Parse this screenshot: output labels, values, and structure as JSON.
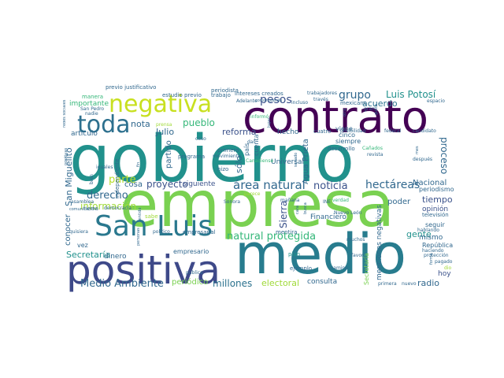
{
  "palette": {
    "purple": "#440154",
    "indigo": "#3b528b",
    "blue": "#31688e",
    "teal": "#21918c",
    "green": "#35b779",
    "lime": "#8fd744",
    "yellow": "#c8e020"
  },
  "words": {
    "gobierno": "gobierno",
    "empresa": "empresa",
    "medio": "medio",
    "contrato": "contrato",
    "positiva": "positiva",
    "san_luis": "San Luis",
    "negativa": "negativa",
    "toda": "toda",
    "medio_ambiente": "Medio Ambiente",
    "pesos": "pesos",
    "grupo": "grupo",
    "luis_potosi": "Luis Potosí",
    "acuerdo": "acuerdo",
    "area_natural": "área natural",
    "natural_protegida": "natural protegida",
    "hectareas": "hectáreas",
    "noticia": "noticia",
    "proyecto": "proyecto",
    "derecho": "derecho",
    "parte": "parte",
    "informacion": "información",
    "pueblo": "pueblo",
    "nota": "nota",
    "julio": "Julio",
    "reforma": "reforma",
    "millones": "millones",
    "electoral": "electoral",
    "periodico": "periódico",
    "secretaria": "Secretaría",
    "gente": "gente",
    "radio": "radio",
    "importante": "importante",
    "articulo": "artículo",
    "proceso": "proceso",
    "tiempo": "tiempo",
    "poder": "poder",
    "nacional": "Nacional",
    "periodismo": "periodismo",
    "opinion": "opinión",
    "television": "televisión",
    "seguir": "seguir",
    "san_miguelito": "San Miguelito",
    "conocer": "conocer",
    "agua_prieta": "Agua Prieta",
    "sierra": "Sierra",
    "solo": "sólo",
    "menciones_negativas": "menciones negativas",
    "mismo": "mismo",
    "republica": "República",
    "hoy": "hoy",
    "cosa": "cosa",
    "siguiente": "siguiente",
    "partido": "partido",
    "dinero": "dinero",
    "vez": "vez",
    "empresarial": "empresarial",
    "empresario": "empresario",
    "financiero": "Financiero",
    "consulta": "consulta",
    "universal": "Universal",
    "pais": "país",
    "cuenta": "cuenta",
    "hecho": "hecho",
    "viene": "viene",
    "cinco": "cinco",
    "siempre": "siempre",
    "desarrollo": "desarrollo",
    "cuatro": "cuatro",
    "posibilidad": "posibilidad",
    "federal": "federal",
    "candidato": "candidato",
    "previo_justificativo": "previo justificativo",
    "periodista": "periodista",
    "intereses_creados": "intereses creados",
    "trabajadores": "trabajadores",
    "mexicano": "mexicano",
    "traves": "través",
    "espacio": "espacio",
    "manera": "manera",
    "redes_sociales": "redes sociales",
    "san_pedro": "San Pedro",
    "nadie": "nadie",
    "adelante": "Adelante",
    "construyendo": "construyendo",
    "incluso": "incluso",
    "estudio_previo": "estudio previo",
    "trabajo": "trabajo",
    "caso": "caso",
    "programa": "programa",
    "primero": "primero",
    "movimiento": "movimiento",
    "hizo": "hizo",
    "iguales": "iguales",
    "independiente": "independiente",
    "despues": "después",
    "canadienses": "Canadiense",
    "senado": "senado",
    "dar": "dar",
    "mentira": "mentira",
    "manana": "mañana",
    "nuevo_leon": "Nuevo León",
    "plan": "plan",
    "ejemplo": "ejemplo",
    "favor": "favor",
    "camino": "camino",
    "sonora": "Sonora",
    "pagado": "pagado",
    "haciendo": "haciendo",
    "proteccion": "protección",
    "primera": "primera",
    "nuevo": "nuevo",
    "muchos": "muchos",
    "politico": "político",
    "publica": "pública",
    "asamblea": "asamblea",
    "comunicacion": "comunicación",
    "quisiera": "quisiera",
    "democracia": "democracia",
    "tierra": "tierra",
    "mes": "mes",
    "informo": "informó",
    "lugar": "lugar",
    "sabe": "sabe",
    "gran": "gran",
    "revista": "revista",
    "canones": "Cañados",
    "hablando": "hablando",
    "fin": "fin",
    "sentido": "sentido",
    "forma": "forma",
    "gusta": "gusta",
    "bien": "bien",
    "ine": "INE",
    "verdad": "verdad",
    "prensa": "prensa",
    "otra": "otra",
    "personas": "personas",
    "positivas": "positivas",
    "cara": "cara",
    "busca": "busca",
    "parece": "parece",
    "dio": "dio"
  }
}
